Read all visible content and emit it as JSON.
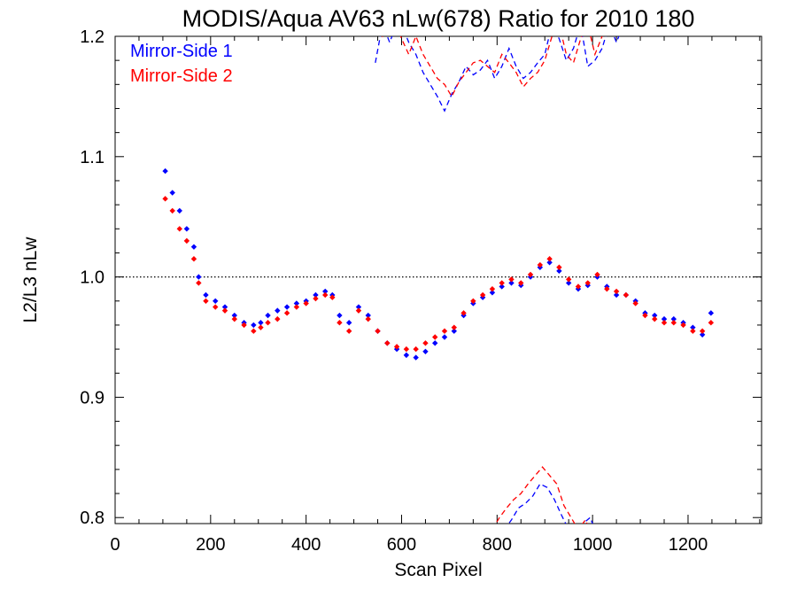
{
  "chart_data": {
    "type": "scatter",
    "title": "MODIS/Aqua AV63 nLw(678) Ratio for 2010 180",
    "xlabel": "Scan Pixel",
    "ylabel": "L2/L3 nLw",
    "xlim": [
      0,
      1354
    ],
    "ylim": [
      0.795,
      1.2
    ],
    "x_ticks": [
      "0",
      "200",
      "400",
      "600",
      "800",
      "1000",
      "1200"
    ],
    "y_ticks": [
      "0.8",
      "0.9",
      "1.0",
      "1.1",
      "1.2"
    ],
    "reference_line": {
      "y": 1.0,
      "style": "dotted"
    },
    "legend": {
      "placement": "top-left"
    },
    "series": [
      {
        "name": "Mirror-Side 1",
        "color": "#0000ff",
        "marker": "diamond",
        "x": [
          105,
          120,
          135,
          150,
          165,
          175,
          190,
          210,
          230,
          250,
          270,
          290,
          305,
          320,
          340,
          360,
          380,
          400,
          420,
          440,
          455,
          470,
          490,
          510,
          530,
          550,
          570,
          590,
          610,
          630,
          650,
          670,
          690,
          710,
          730,
          750,
          770,
          790,
          810,
          830,
          850,
          870,
          890,
          910,
          930,
          950,
          970,
          990,
          1010,
          1030,
          1050,
          1070,
          1090,
          1110,
          1130,
          1150,
          1170,
          1190,
          1210,
          1230,
          1248
        ],
        "y": [
          1.088,
          1.07,
          1.055,
          1.04,
          1.025,
          1.0,
          0.985,
          0.98,
          0.975,
          0.968,
          0.962,
          0.96,
          0.962,
          0.968,
          0.972,
          0.975,
          0.978,
          0.98,
          0.985,
          0.988,
          0.985,
          0.968,
          0.962,
          0.975,
          0.968,
          0.955,
          0.945,
          0.94,
          0.935,
          0.933,
          0.938,
          0.945,
          0.95,
          0.955,
          0.968,
          0.978,
          0.983,
          0.987,
          0.992,
          0.995,
          0.993,
          1.0,
          1.008,
          1.012,
          1.005,
          0.995,
          0.99,
          0.993,
          1.0,
          0.992,
          0.985,
          0.985,
          0.98,
          0.97,
          0.968,
          0.965,
          0.965,
          0.962,
          0.958,
          0.952,
          0.97
        ]
      },
      {
        "name": "Mirror-Side 2",
        "color": "#ff0000",
        "marker": "diamond",
        "x": [
          105,
          120,
          135,
          150,
          165,
          175,
          190,
          210,
          230,
          250,
          270,
          290,
          305,
          320,
          340,
          360,
          380,
          400,
          420,
          440,
          455,
          470,
          490,
          510,
          530,
          550,
          570,
          590,
          610,
          630,
          650,
          670,
          690,
          710,
          730,
          750,
          770,
          790,
          810,
          830,
          850,
          870,
          890,
          910,
          930,
          950,
          970,
          990,
          1010,
          1030,
          1050,
          1070,
          1090,
          1110,
          1130,
          1150,
          1170,
          1190,
          1210,
          1230,
          1248
        ],
        "y": [
          1.065,
          1.055,
          1.04,
          1.03,
          1.015,
          0.995,
          0.98,
          0.975,
          0.972,
          0.965,
          0.96,
          0.955,
          0.958,
          0.962,
          0.965,
          0.97,
          0.975,
          0.978,
          0.982,
          0.985,
          0.983,
          0.962,
          0.955,
          0.972,
          0.965,
          0.955,
          0.945,
          0.942,
          0.94,
          0.94,
          0.945,
          0.95,
          0.955,
          0.958,
          0.97,
          0.98,
          0.985,
          0.99,
          0.995,
          0.998,
          0.995,
          1.002,
          1.01,
          1.015,
          1.008,
          0.998,
          0.992,
          0.995,
          1.002,
          0.99,
          0.988,
          0.985,
          0.978,
          0.968,
          0.965,
          0.962,
          0.962,
          0.96,
          0.955,
          0.955,
          0.962
        ]
      }
    ],
    "dashed_bands": [
      {
        "name": "Mirror-Side 1 upper",
        "color": "#0000ff",
        "x": [
          545,
          560,
          575,
          590,
          600,
          615,
          630,
          645,
          660,
          675,
          690,
          705,
          720,
          735,
          750,
          765,
          780,
          795,
          810,
          825,
          840,
          855,
          870,
          885,
          900,
          915,
          930,
          945,
          960,
          975,
          990,
          1005,
          1020,
          1035,
          1050,
          1065
        ],
        "y": [
          1.178,
          1.21,
          1.195,
          1.21,
          1.21,
          1.195,
          1.185,
          1.17,
          1.16,
          1.15,
          1.138,
          1.152,
          1.162,
          1.175,
          1.168,
          1.172,
          1.18,
          1.165,
          1.175,
          1.19,
          1.175,
          1.165,
          1.17,
          1.178,
          1.185,
          1.21,
          1.198,
          1.18,
          1.19,
          1.21,
          1.175,
          1.18,
          1.19,
          1.21,
          1.195,
          1.21
        ]
      },
      {
        "name": "Mirror-Side 2 upper",
        "color": "#ff0000",
        "x": [
          545,
          560,
          575,
          590,
          600,
          615,
          630,
          645,
          660,
          675,
          690,
          705,
          720,
          735,
          750,
          765,
          780,
          795,
          810,
          825,
          840,
          855,
          870,
          885,
          900,
          915,
          930,
          945,
          960,
          975,
          990,
          1005,
          1020,
          1035,
          1050,
          1065
        ],
        "y": [
          1.21,
          1.2,
          1.21,
          1.21,
          1.198,
          1.185,
          1.2,
          1.185,
          1.175,
          1.165,
          1.16,
          1.15,
          1.162,
          1.17,
          1.178,
          1.18,
          1.175,
          1.17,
          1.185,
          1.178,
          1.17,
          1.158,
          1.165,
          1.17,
          1.18,
          1.2,
          1.21,
          1.185,
          1.178,
          1.198,
          1.21,
          1.185,
          1.2,
          1.21,
          1.21,
          1.21
        ]
      },
      {
        "name": "Mirror-Side 1 lower",
        "color": "#0000ff",
        "x": [
          800,
          815,
          830,
          845,
          860,
          875,
          890,
          905,
          920,
          935,
          950,
          965,
          980,
          995,
          1010
        ],
        "y": [
          0.785,
          0.79,
          0.798,
          0.808,
          0.812,
          0.818,
          0.828,
          0.825,
          0.815,
          0.802,
          0.79,
          0.785,
          0.795,
          0.8,
          0.785
        ]
      },
      {
        "name": "Mirror-Side 2 lower",
        "color": "#ff0000",
        "x": [
          790,
          805,
          820,
          835,
          850,
          865,
          880,
          895,
          910,
          925,
          940,
          955,
          970,
          985,
          1000
        ],
        "y": [
          0.79,
          0.8,
          0.808,
          0.815,
          0.82,
          0.828,
          0.835,
          0.842,
          0.835,
          0.828,
          0.81,
          0.8,
          0.79,
          0.798,
          0.785
        ]
      }
    ]
  }
}
